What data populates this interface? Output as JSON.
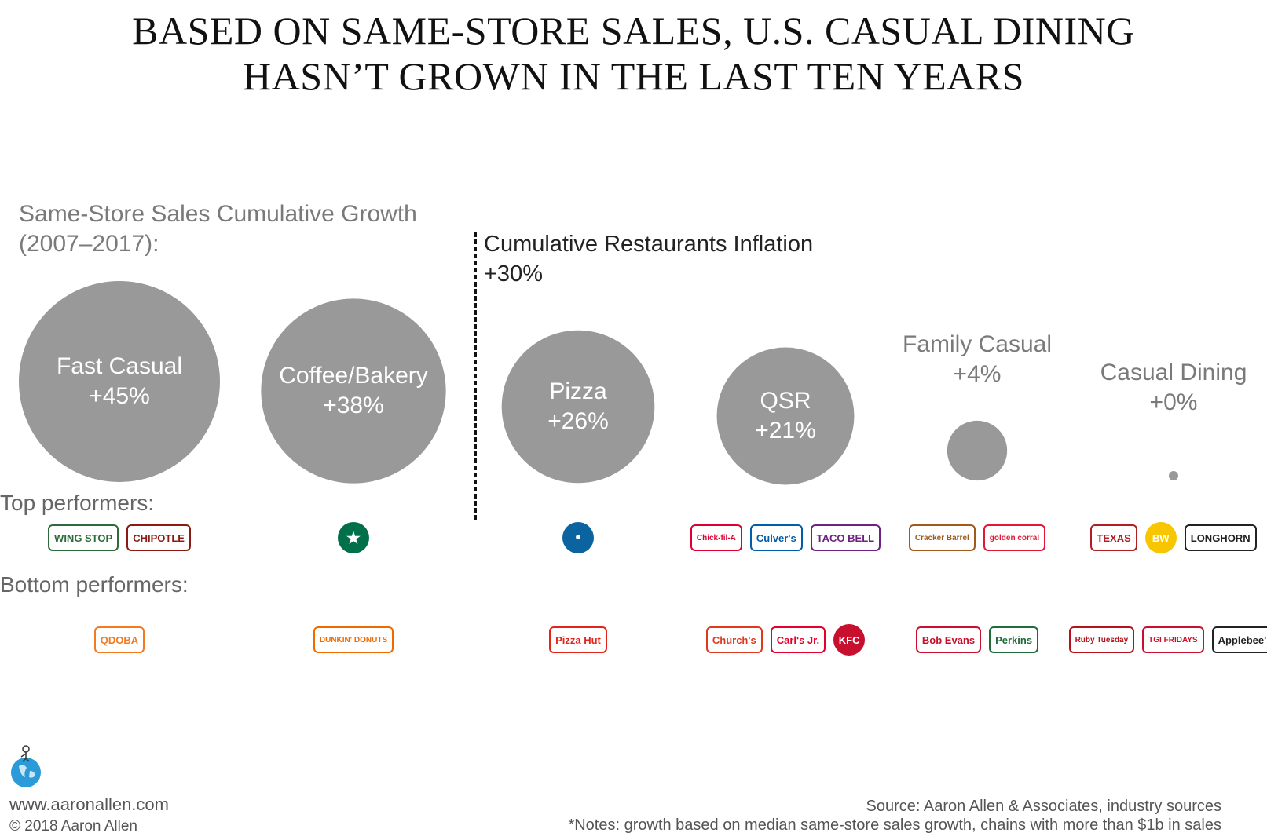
{
  "title": {
    "line1": "BASED ON SAME-STORE SALES, U.S. CASUAL DINING",
    "line2": "HASN’T GROWN IN THE LAST TEN YEARS"
  },
  "subtitle": {
    "line1": "Same-Store Sales Cumulative Growth",
    "line2": "(2007–2017):"
  },
  "inflation": {
    "line1": "Cumulative Restaurants Inflation",
    "line2": "+30%",
    "value": 30
  },
  "row_labels": {
    "top": "Top performers:",
    "bottom": "Bottom performers:"
  },
  "chart_data": {
    "type": "bubble",
    "title": "BASED ON SAME-STORE SALES, U.S. CASUAL DINING HASN’T GROWN IN THE LAST TEN YEARS",
    "subtitle": "Same-Store Sales Cumulative Growth (2007–2017):",
    "reference": {
      "label": "Cumulative Restaurants Inflation",
      "value": 30
    },
    "categories": [
      "Fast Casual",
      "Coffee/Bakery",
      "Pizza",
      "QSR",
      "Family Casual",
      "Casual Dining"
    ],
    "values": [
      45,
      38,
      26,
      21,
      4,
      0
    ],
    "value_labels": [
      "+45%",
      "+38%",
      "+26%",
      "+21%",
      "+4%",
      "+0%"
    ],
    "bubble_color": "#999999"
  },
  "logos": {
    "top": [
      [
        {
          "text": "WING STOP",
          "icon": "wingstop-logo",
          "color": "#2e6b3a"
        },
        {
          "text": "CHIPOTLE",
          "icon": "chipotle-logo",
          "color": "#8b1a10"
        }
      ],
      [
        {
          "text": "★",
          "icon": "starbucks-logo",
          "color": "#00704a"
        }
      ],
      [
        {
          "text": "•",
          "icon": "dominos-logo",
          "color": "#0b64a0"
        }
      ],
      [
        {
          "text": "Chick-fil-A",
          "icon": "chickfila-logo",
          "color": "#dd0031"
        },
        {
          "text": "Culver's",
          "icon": "culvers-logo",
          "color": "#005daa"
        },
        {
          "text": "TACO BELL",
          "icon": "tacobell-logo",
          "color": "#702082"
        }
      ],
      [
        {
          "text": "Cracker Barrel",
          "icon": "crackerbarrel-logo",
          "color": "#a05a1c"
        },
        {
          "text": "golden corral",
          "icon": "goldencorral-logo",
          "color": "#e31837"
        }
      ],
      [
        {
          "text": "TEXAS",
          "icon": "texasroadhouse-logo",
          "color": "#b01e23"
        },
        {
          "text": "BW",
          "icon": "buffalowildwings-logo",
          "color": "#f7c600"
        },
        {
          "text": "LONGHORN",
          "icon": "longhorn-logo",
          "color": "#222222"
        }
      ]
    ],
    "bottom": [
      [
        {
          "text": "QDOBA",
          "icon": "qdoba-logo",
          "color": "#f47a20"
        }
      ],
      [
        {
          "text": "DUNKIN' DONUTS",
          "icon": "dunkin-logo",
          "color": "#ef6a00"
        }
      ],
      [
        {
          "text": "Pizza Hut",
          "icon": "pizzahut-logo",
          "color": "#e1251b"
        }
      ],
      [
        {
          "text": "Church's",
          "icon": "churchs-logo",
          "color": "#e03a1e"
        },
        {
          "text": "Carl's Jr.",
          "icon": "carlsjr-logo",
          "color": "#e4002b"
        },
        {
          "text": "KFC",
          "icon": "kfc-logo",
          "color": "#c8102e"
        }
      ],
      [
        {
          "text": "Bob Evans",
          "icon": "bobevans-logo",
          "color": "#c8102e"
        },
        {
          "text": "Perkins",
          "icon": "perkins-logo",
          "color": "#1f6b3a"
        }
      ],
      [
        {
          "text": "Ruby Tuesday",
          "icon": "rubytuesday-logo",
          "color": "#b5121b"
        },
        {
          "text": "TGI FRIDAYS",
          "icon": "tgifridays-logo",
          "color": "#c8102e"
        },
        {
          "text": "Applebee's",
          "icon": "applebees-logo",
          "color": "#222222"
        }
      ]
    ]
  },
  "footer": {
    "website": "www.aaronallen.com",
    "copyright": "© 2018 Aaron Allen",
    "source": "Source: Aaron Allen & Associates, industry sources",
    "notes": "*Notes: growth based on median same-store sales growth, chains with more than $1b in sales"
  }
}
